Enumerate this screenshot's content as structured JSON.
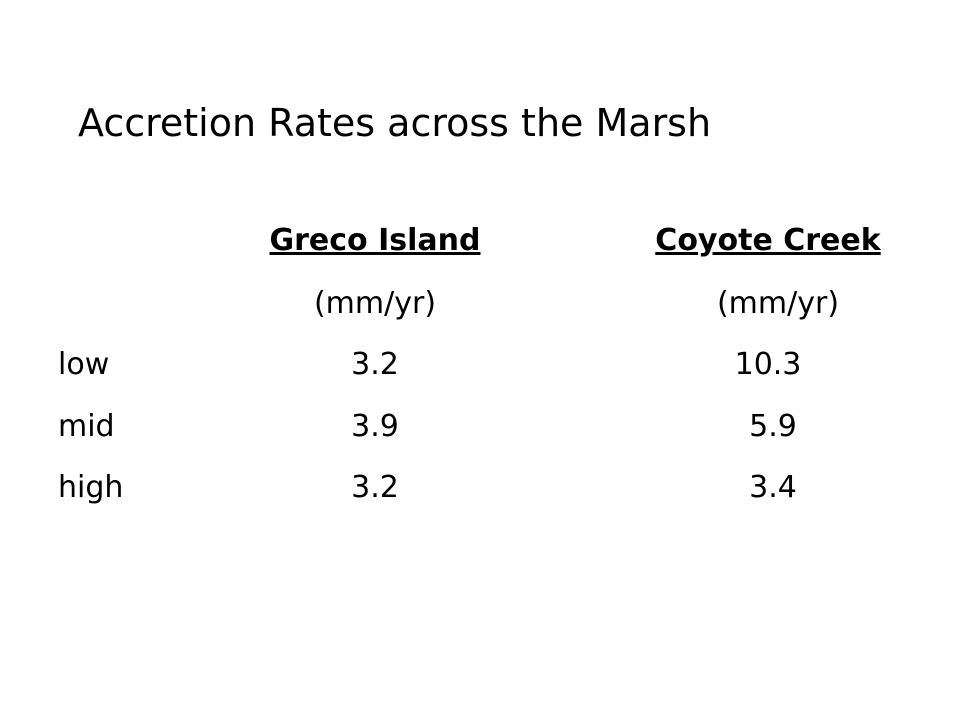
{
  "title": "Accretion Rates across the Marsh",
  "table": {
    "columns": [
      "Greco Island",
      "Coyote Creek"
    ],
    "units": [
      "(mm/yr)",
      "(mm/yr)"
    ],
    "rows": [
      [
        "low",
        3.2,
        10.3
      ],
      [
        "mid",
        3.9,
        5.9
      ],
      [
        "high",
        3.2,
        3.4
      ]
    ]
  }
}
